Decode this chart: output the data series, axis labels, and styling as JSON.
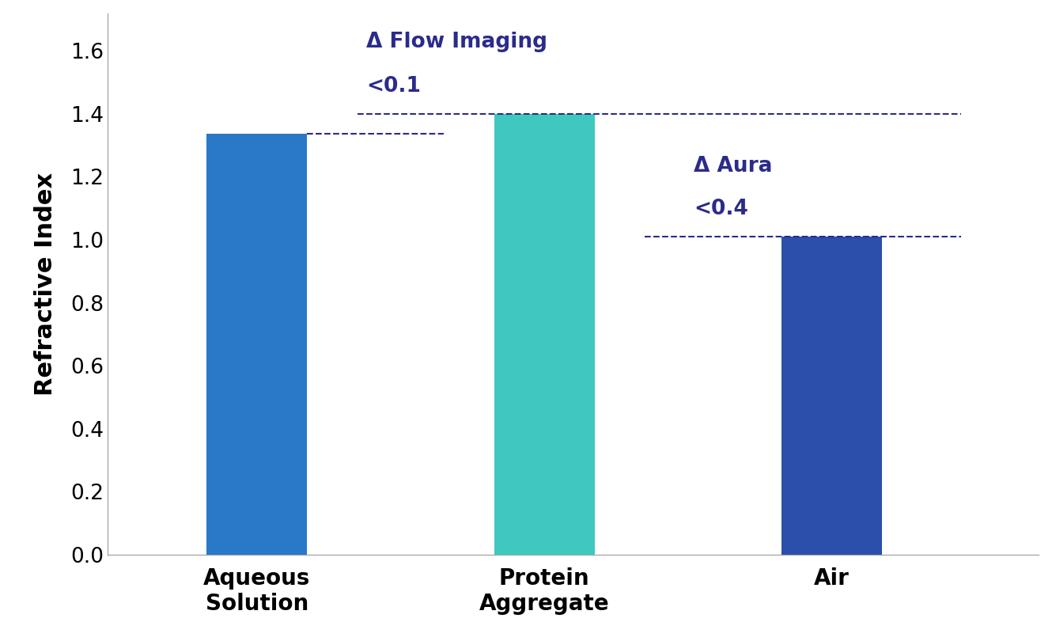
{
  "categories": [
    "Aqueous\nSolution",
    "Protein\nAggregate",
    "Air"
  ],
  "values": [
    1.336,
    1.4,
    1.01
  ],
  "bar_colors": [
    "#2979C8",
    "#3EC8C0",
    "#2B4FAA"
  ],
  "ylabel": "Refractive Index",
  "ylim": [
    0,
    1.72
  ],
  "yticks": [
    0.0,
    0.2,
    0.4,
    0.6,
    0.8,
    1.0,
    1.2,
    1.4,
    1.6
  ],
  "annotation_color": "#2B2B8A",
  "flow_imaging_label_line1": "Δ Flow Imaging",
  "flow_imaging_label_line2": "<0.1",
  "aura_label_line1": "Δ Aura",
  "aura_label_line2": "<0.4",
  "background_color": "#ffffff",
  "bar_width": 0.35,
  "tick_fontsize": 19,
  "ylabel_fontsize": 22,
  "xlabel_fontsize": 20,
  "annotation_fontsize": 19
}
